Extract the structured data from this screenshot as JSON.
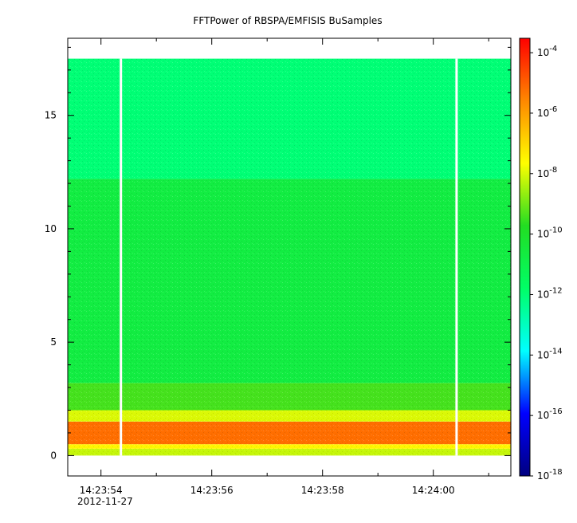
{
  "chart_data": {
    "type": "heatmap",
    "title": "FFTPower of RBSPA/EMFISIS  BuSamples",
    "xlabel": "",
    "ylabel": "",
    "x_ticks": [
      "14:23:54",
      "14:23:56",
      "14:23:58",
      "14:24:00"
    ],
    "x_tick_seconds": [
      0,
      2,
      4,
      6
    ],
    "x_range_seconds": [
      -0.6,
      7.4
    ],
    "x_date_label": "2012-11-27",
    "y_ticks": [
      "0",
      "5",
      "10",
      "15"
    ],
    "y_tick_values": [
      0,
      5,
      10,
      15
    ],
    "y_range": [
      -0.9,
      18.4
    ],
    "data_extent_y": [
      0,
      17.5
    ],
    "gaps_seconds": [
      0.36,
      6.42
    ],
    "colorbar": {
      "scale": "log",
      "range": [
        1e-18,
        0.0003
      ],
      "tick_labels": [
        {
          "base": "10",
          "exp": "-4"
        },
        {
          "base": "10",
          "exp": "-6"
        },
        {
          "base": "10",
          "exp": "-8"
        },
        {
          "base": "10",
          "exp": "-10"
        },
        {
          "base": "10",
          "exp": "-12"
        },
        {
          "base": "10",
          "exp": "-14"
        },
        {
          "base": "10",
          "exp": "-16"
        },
        {
          "base": "10",
          "exp": "-18"
        }
      ],
      "tick_exponents": [
        -4,
        -6,
        -8,
        -10,
        -12,
        -14,
        -16,
        -18
      ],
      "colors": [
        "#000080",
        "#0000ff",
        "#00ffff",
        "#00ff66",
        "#22dd22",
        "#ffff00",
        "#ff8800",
        "#ff0000"
      ]
    },
    "bands": [
      {
        "y": [
          0.0,
          0.3
        ],
        "log_power": -8.2
      },
      {
        "y": [
          0.3,
          0.5
        ],
        "log_power": -7.5
      },
      {
        "y": [
          0.5,
          1.5
        ],
        "log_power": -5.2
      },
      {
        "y": [
          1.5,
          2.0
        ],
        "log_power": -8.0
      },
      {
        "y": [
          2.0,
          3.2
        ],
        "log_power": -9.4
      },
      {
        "y": [
          3.2,
          12.2
        ],
        "log_power": -10.7
      },
      {
        "y": [
          12.2,
          17.5
        ],
        "log_power": -12.0
      }
    ]
  }
}
